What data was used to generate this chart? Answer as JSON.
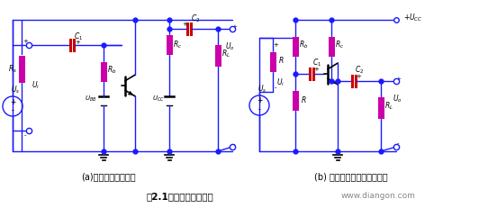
{
  "title": "图2.1单管共射放大电路",
  "website": "www.diangon.com",
  "subtitle_a": "(a)单管共射放大电路",
  "subtitle_b": "(b) 单电源共射基本放大电路",
  "bg_color": "#ffffff",
  "wire_color": "#1a1aff",
  "component_color": "#cc00aa",
  "cap_color": "#cc0000",
  "text_color": "#000000",
  "figsize": [
    5.32,
    2.31
  ],
  "dpi": 100
}
